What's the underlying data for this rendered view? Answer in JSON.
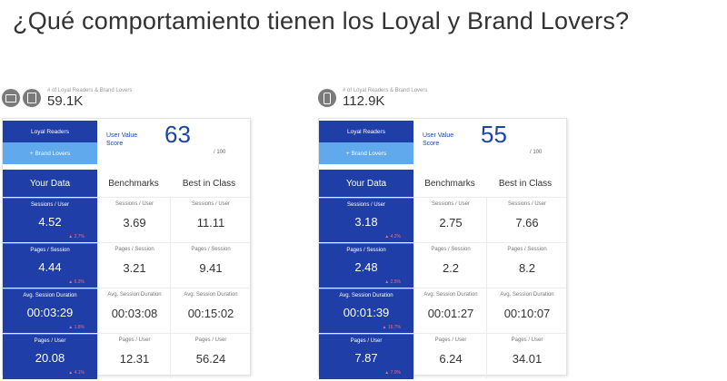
{
  "title": "¿Qué comportamiento tienen los Loyal y Brand Lovers?",
  "panels": [
    {
      "subtitle": "# of Loyal Readers & Brand Lovers",
      "count": "59.1K",
      "devices": [
        "desktop-icon",
        "tablet-icon"
      ],
      "segment_primary": "Loyal Readers",
      "segment_secondary": "+ Brand Lovers",
      "score_label_1": "User Value",
      "score_label_2": "Score",
      "score": "63",
      "score_max": "/ 100",
      "col_your": "Your Data",
      "col_bench": "Benchmarks",
      "col_best": "Best in Class",
      "rows": [
        {
          "label": "Sessions / User",
          "your": "4.52",
          "delta": "▲ 2.7%",
          "bench": "3.69",
          "best": "11.11"
        },
        {
          "label": "Pages / Session",
          "your": "4.44",
          "delta": "▲ 6.3%",
          "bench": "3.21",
          "best": "9.41"
        },
        {
          "label": "Avg. Session Duration",
          "your": "00:03:29",
          "delta": "▲ 1.8%",
          "bench": "00:03:08",
          "best": "00:15:02"
        },
        {
          "label": "Pages / User",
          "your": "20.08",
          "delta": "▲ 4.1%",
          "bench": "12.31",
          "best": "56.24"
        }
      ]
    },
    {
      "subtitle": "# of Loyal Readers & Brand Lovers",
      "count": "112.9K",
      "devices": [
        "phone-icon"
      ],
      "segment_primary": "Loyal Readers",
      "segment_secondary": "+ Brand Lovers",
      "score_label_1": "User Value",
      "score_label_2": "Score",
      "score": "55",
      "score_max": "/ 100",
      "col_your": "Your Data",
      "col_bench": "Benchmarks",
      "col_best": "Best in Class",
      "rows": [
        {
          "label": "Sessions / User",
          "your": "3.18",
          "delta": "▲ 4.2%",
          "bench": "2.75",
          "best": "7.66"
        },
        {
          "label": "Pages / Session",
          "your": "2.48",
          "delta": "▲ 2.5%",
          "bench": "2.2",
          "best": "8.2"
        },
        {
          "label": "Avg. Session Duration",
          "your": "00:01:39",
          "delta": "▲ 16.7%",
          "bench": "00:01:27",
          "best": "00:10:07"
        },
        {
          "label": "Pages / User",
          "your": "7.87",
          "delta": "▲ 7.0%",
          "bench": "6.24",
          "best": "34.01"
        }
      ]
    }
  ],
  "colors": {
    "primary": "#1f3ea8",
    "secondary": "#5fa9ec",
    "score": "#1c46a6",
    "delta": "#ff6a6a"
  }
}
